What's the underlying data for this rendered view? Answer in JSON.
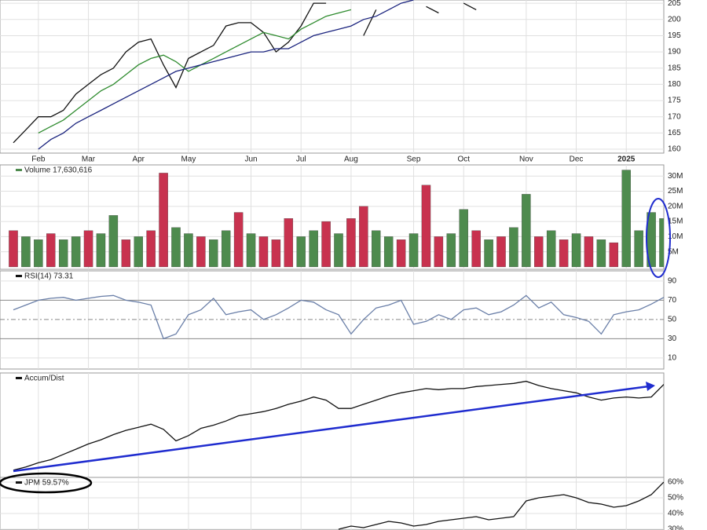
{
  "chart_data": [
    {
      "type": "line",
      "categories": [
        null,
        null,
        "Feb",
        null,
        null,
        null,
        "Mar",
        null,
        null,
        null,
        "Apr",
        null,
        null,
        null,
        "May",
        null,
        null,
        null,
        null,
        "Jun",
        null,
        null,
        null,
        "Jul",
        null,
        null,
        null,
        "Aug",
        null,
        null,
        null,
        null,
        "Sep",
        null,
        null,
        null,
        "Oct",
        null,
        null,
        null,
        null,
        "Nov",
        null,
        null,
        null,
        "Dec",
        null,
        null,
        null,
        "2025",
        null,
        null,
        null
      ],
      "series": [
        {
          "color": "#111111",
          "values": [
            162,
            166,
            170,
            170,
            172,
            177,
            180,
            183,
            185,
            190,
            193,
            194,
            186,
            179,
            188,
            190,
            192,
            198,
            199,
            199,
            196,
            190,
            193,
            198,
            205,
            205,
            null,
            null,
            195,
            203,
            null,
            null,
            null,
            204,
            202,
            null,
            205,
            203,
            null,
            null,
            null,
            null,
            null,
            null,
            null,
            null,
            null,
            null,
            null,
            null,
            null,
            null,
            null
          ]
        },
        {
          "color": "#2e8b2e",
          "values": [
            null,
            null,
            165,
            167,
            169,
            172,
            175,
            178,
            180,
            183,
            186,
            188,
            189,
            187,
            184,
            186,
            188,
            190,
            192,
            194,
            196,
            195,
            194,
            197,
            199,
            201,
            202,
            203,
            null,
            null,
            null,
            null,
            null,
            null,
            null,
            null,
            null,
            null,
            null,
            null,
            null,
            null,
            null,
            null,
            null,
            null,
            null,
            null,
            null,
            null,
            null,
            null,
            null
          ]
        },
        {
          "color": "#1a237e",
          "values": [
            null,
            null,
            160,
            163,
            165,
            168,
            170,
            172,
            174,
            176,
            178,
            180,
            182,
            184,
            185,
            186,
            187,
            188,
            189,
            190,
            190,
            191,
            191,
            193,
            195,
            196,
            197,
            198,
            200,
            201,
            203,
            205,
            206,
            null,
            null,
            null,
            null,
            null,
            null,
            null,
            null,
            null,
            null,
            null,
            null,
            null,
            null,
            null,
            null,
            null,
            null,
            null,
            null
          ]
        }
      ],
      "ylim": [
        158.8,
        206
      ],
      "yticks": [
        160,
        165,
        170,
        175,
        180,
        185,
        190,
        195,
        200,
        205
      ],
      "grid": true
    },
    {
      "type": "bar",
      "title": "Volume 17,630,616",
      "values": [
        12,
        10,
        9,
        11,
        9,
        10,
        12,
        11,
        17,
        9,
        10,
        12,
        31,
        13,
        11,
        10,
        9,
        12,
        18,
        11,
        10,
        9,
        16,
        10,
        12,
        15,
        11,
        16,
        20,
        12,
        10,
        9,
        11,
        27,
        10,
        11,
        19,
        12,
        9,
        10,
        13,
        24,
        10,
        12,
        9,
        11,
        10,
        9,
        8,
        32,
        12,
        18,
        16
      ],
      "colors": [
        "#c8324f",
        "#4e8b4e",
        "#4e8b4e",
        "#c8324f",
        "#4e8b4e",
        "#4e8b4e",
        "#c8324f",
        "#4e8b4e",
        "#4e8b4e",
        "#c8324f",
        "#4e8b4e",
        "#c8324f",
        "#c8324f",
        "#4e8b4e",
        "#4e8b4e",
        "#c8324f",
        "#4e8b4e",
        "#4e8b4e",
        "#c8324f",
        "#4e8b4e",
        "#c8324f",
        "#c8324f",
        "#c8324f",
        "#4e8b4e",
        "#4e8b4e",
        "#c8324f",
        "#4e8b4e",
        "#c8324f",
        "#c8324f",
        "#4e8b4e",
        "#4e8b4e",
        "#c8324f",
        "#4e8b4e",
        "#c8324f",
        "#c8324f",
        "#4e8b4e",
        "#4e8b4e",
        "#c8324f",
        "#4e8b4e",
        "#c8324f",
        "#4e8b4e",
        "#4e8b4e",
        "#c8324f",
        "#4e8b4e",
        "#c8324f",
        "#4e8b4e",
        "#c8324f",
        "#4e8b4e",
        "#c8324f",
        "#4e8b4e",
        "#4e8b4e",
        "#4e8b4e",
        "#4e8b4e"
      ],
      "ylim": [
        -0.8,
        33.7
      ],
      "yticks": [
        {
          "value": 5,
          "label": "5M"
        },
        {
          "value": 10,
          "label": "10M"
        },
        {
          "value": 15,
          "label": "15M"
        },
        {
          "value": 20,
          "label": "20M"
        },
        {
          "value": 25,
          "label": "25M"
        },
        {
          "value": 30,
          "label": "30M"
        }
      ],
      "grid": true
    },
    {
      "type": "line",
      "title": "RSI(14) 73.31",
      "color": "#6a7fa8",
      "values": [
        60,
        65,
        70,
        72,
        73,
        70,
        72,
        74,
        75,
        70,
        68,
        65,
        30,
        35,
        55,
        60,
        72,
        55,
        58,
        60,
        50,
        55,
        62,
        70,
        68,
        60,
        55,
        35,
        50,
        62,
        65,
        70,
        45,
        48,
        55,
        50,
        60,
        62,
        55,
        58,
        65,
        75,
        62,
        68,
        55,
        52,
        48,
        35,
        55,
        58,
        60,
        66,
        73
      ],
      "ylim": [
        -1.5,
        100.5
      ],
      "yticks": [
        10,
        30,
        50,
        70,
        90
      ],
      "grid": true
    },
    {
      "type": "line",
      "title": "Accum/Dist",
      "color": "#111111",
      "values": [
        7,
        10,
        14,
        17,
        22,
        27,
        32,
        36,
        41,
        45,
        48,
        51,
        46,
        35,
        40,
        47,
        50,
        54,
        59,
        61,
        63,
        66,
        70,
        73,
        77,
        74,
        66,
        66,
        70,
        74,
        78,
        81,
        83,
        85,
        84,
        85,
        85,
        87,
        88,
        89,
        90,
        92,
        88,
        85,
        83,
        81,
        77,
        74,
        76,
        77,
        76,
        77,
        89
      ],
      "ylim": [
        0,
        100
      ]
    },
    {
      "type": "line",
      "title": "JPM 59.57%",
      "color": "#111111",
      "values": [
        null,
        null,
        null,
        null,
        null,
        null,
        null,
        null,
        null,
        null,
        null,
        null,
        null,
        null,
        null,
        null,
        null,
        null,
        null,
        null,
        null,
        null,
        null,
        null,
        null,
        null,
        30,
        32,
        31,
        33,
        35,
        34,
        32,
        33,
        35,
        36,
        37,
        38,
        36,
        37,
        38,
        48,
        50,
        51,
        52,
        50,
        47,
        46,
        44,
        45,
        48,
        52,
        60
      ],
      "ylim": [
        29.5,
        63
      ],
      "yticks": [
        {
          "value": 30,
          "label": "30%"
        },
        {
          "value": 40,
          "label": "40%"
        },
        {
          "value": 50,
          "label": "50%"
        },
        {
          "value": 60,
          "label": "60%"
        }
      ],
      "grid": true
    }
  ]
}
